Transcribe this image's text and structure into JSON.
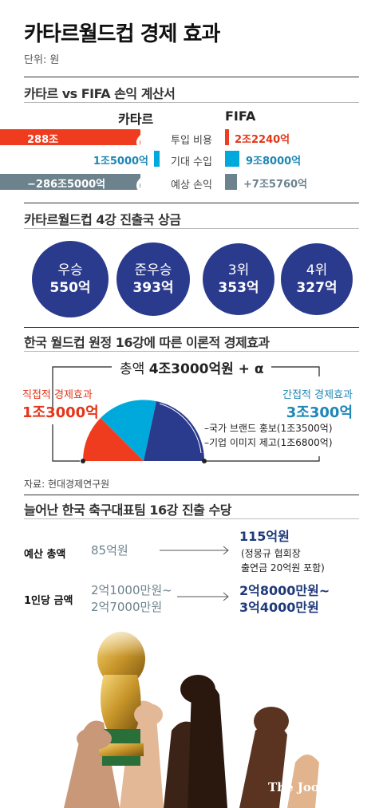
{
  "header": {
    "title": "카타르월드컵 경제 효과",
    "unit": "단위: 원"
  },
  "section1": {
    "title": "카타르 vs FIFA 손익 계산서",
    "left_header": "카타르",
    "right_header": "FIFA",
    "rows": [
      {
        "label": "투입 비용",
        "left": "288조",
        "right": "2조2240억"
      },
      {
        "label": "기대 수입",
        "left": "1조5000억",
        "right": "9조8000억"
      },
      {
        "label": "예상 손익",
        "left": "−286조5000억",
        "right": "+7조5760억"
      }
    ],
    "colors": {
      "cost": "#f03c1e",
      "revenue": "#00a9dc",
      "profit": "#6c838d"
    }
  },
  "section2": {
    "title": "카타르월드컵 4강 진출국 상금",
    "prizes": [
      {
        "rank": "우승",
        "amount": "550억"
      },
      {
        "rank": "준우승",
        "amount": "393억"
      },
      {
        "rank": "3위",
        "amount": "353억"
      },
      {
        "rank": "4위",
        "amount": "327억"
      }
    ],
    "circle_color": "#2a3a8c"
  },
  "section3": {
    "title": "한국 월드컵 원정 16강에 따른 이론적 경제효과",
    "total_prefix": "총액 ",
    "total_value": "4조3000억원",
    "total_suffix": " + α",
    "direct_label": "직접적 경제효과",
    "direct_value": "1조3000억",
    "indirect_label": "간접적 경제효과",
    "indirect_value": "3조300억",
    "items": [
      "–국가 브랜드 홍보(1조3500억)",
      "–기업 이미지 제고(1조6800억)"
    ],
    "source": "자료: 현대경제연구원",
    "colors": {
      "direct": "#f03c1e",
      "indirect_a": "#00a9dc",
      "indirect_b": "#2a3a8c"
    }
  },
  "section4": {
    "title": "늘어난 한국 축구대표팀 16강 진출 수당",
    "rows": [
      {
        "label": "예산 총액",
        "before": [
          "85억원"
        ],
        "after": [
          "115억원"
        ],
        "note": [
          "(정몽규 협회장",
          "출연금 20억원 포함)"
        ]
      },
      {
        "label": "1인당 금액",
        "before": [
          "2억1000만원~",
          "2억7000만원"
        ],
        "after": [
          "2억8000만원~",
          "3억4000만원"
        ],
        "note": []
      }
    ]
  },
  "footer": {
    "logo": "The JoongAng"
  }
}
